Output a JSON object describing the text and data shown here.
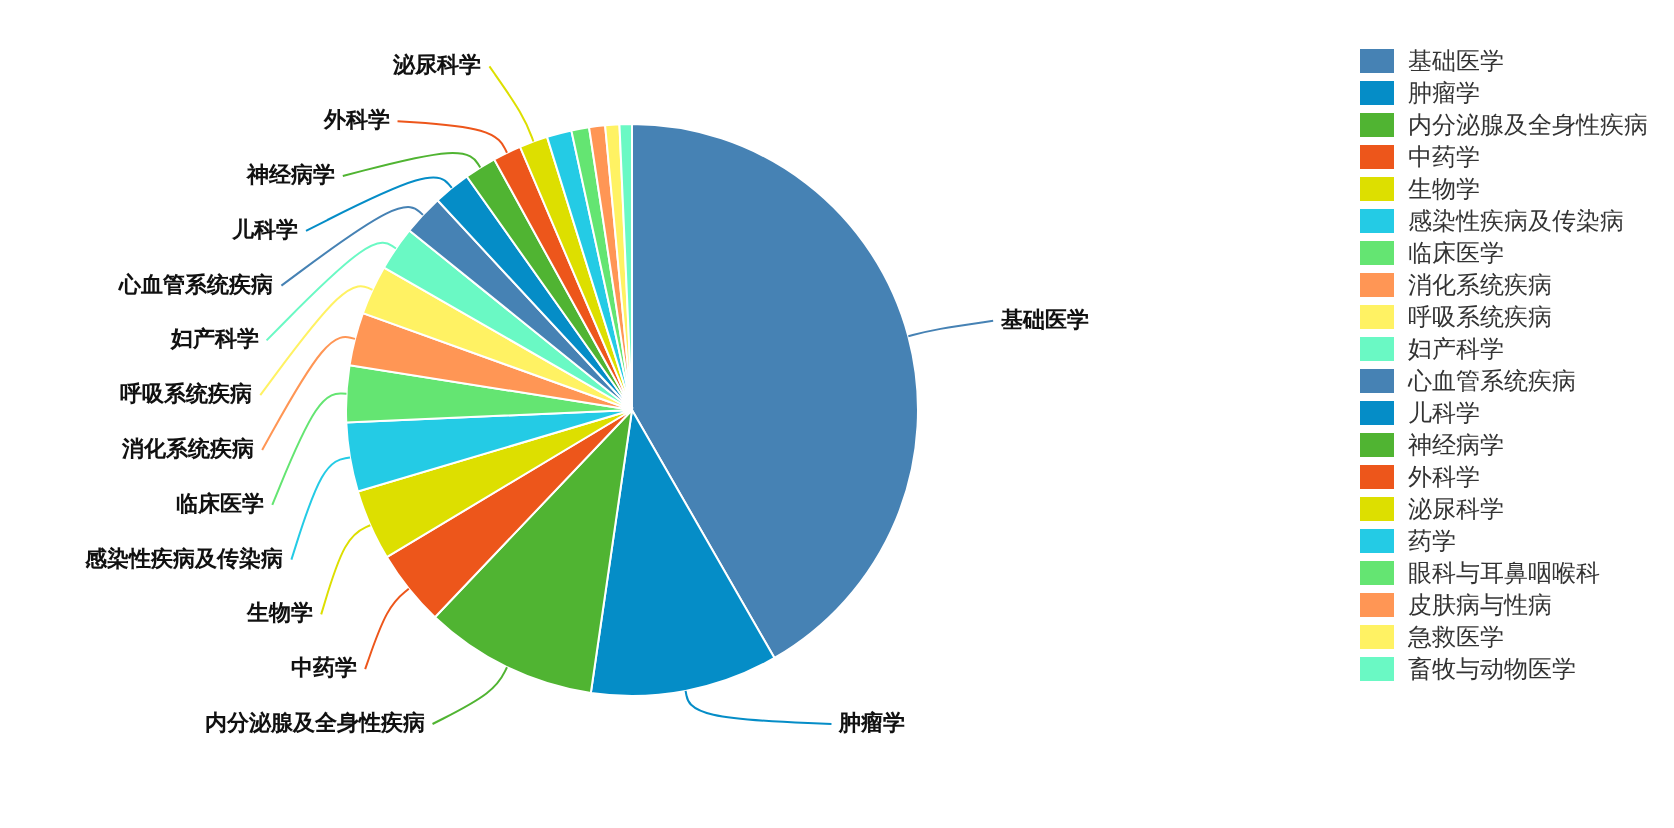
{
  "chart_data": {
    "type": "pie",
    "categories": [
      "基础医学",
      "肿瘤学",
      "内分泌腺及全身性疾病",
      "中药学",
      "生物学",
      "感染性疾病及传染病",
      "临床医学",
      "消化系统疾病",
      "呼吸系统疾病",
      "妇产科学",
      "心血管系统疾病",
      "儿科学",
      "神经病学",
      "外科学",
      "泌尿科学",
      "药学",
      "眼科与耳鼻咽喉科",
      "皮肤病与性病",
      "急救医学",
      "畜牧与动物医学"
    ],
    "values": [
      41.7,
      10.6,
      9.8,
      4.3,
      4.0,
      3.9,
      3.2,
      3.0,
      2.8,
      2.5,
      2.3,
      2.1,
      1.8,
      1.6,
      1.6,
      1.4,
      1.0,
      0.9,
      0.8,
      0.7
    ],
    "colors": [
      "#4682b4",
      "#058dc7",
      "#50b432",
      "#ed561b",
      "#dddf00",
      "#24cbe5",
      "#64e572",
      "#ff9655",
      "#fff263",
      "#6af9c4",
      "#4682b4",
      "#058dc7",
      "#50b432",
      "#ed561b",
      "#dddf00",
      "#24cbe5",
      "#64e572",
      "#ff9655",
      "#fff263",
      "#6af9c4"
    ],
    "legend": "right"
  }
}
